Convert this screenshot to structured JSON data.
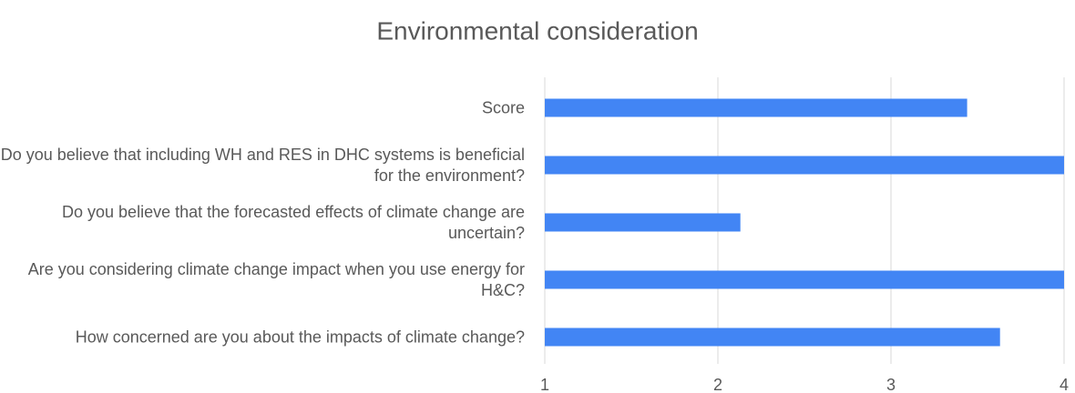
{
  "chart_data": {
    "type": "barh",
    "title": "Environmental consideration",
    "categories": [
      "Score",
      "Do you believe that including WH and RES in DHC systems is beneficial for the environment?",
      "Do you believe that the forecasted effects of climate change are uncertain?",
      "Are you considering climate change impact when you use energy for H&C?",
      "How concerned are you about the impacts of climate change?"
    ],
    "values": [
      3.44,
      4,
      2.13,
      4,
      3.63
    ],
    "color": "#4285f4",
    "xlim": [
      1,
      4
    ],
    "xticks": [
      1,
      2,
      3,
      4
    ],
    "grid": true
  }
}
